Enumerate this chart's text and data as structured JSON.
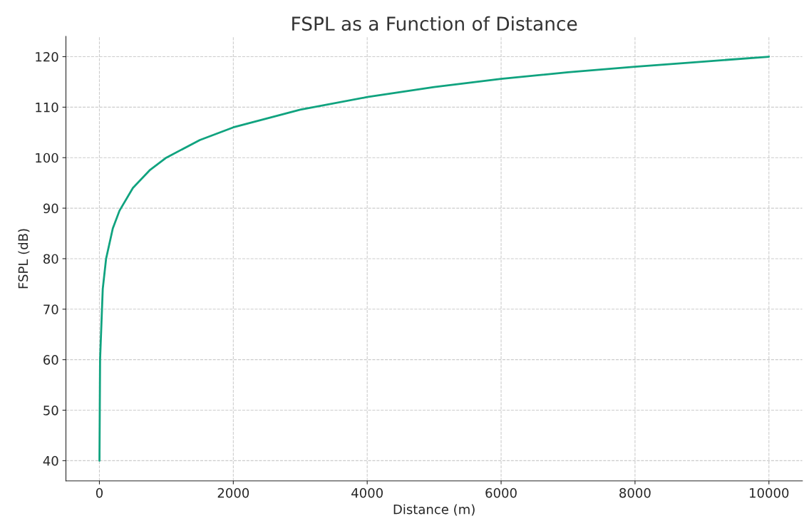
{
  "chart_data": {
    "type": "line",
    "title": "FSPL as a Function of Distance",
    "xlabel": "Distance (m)",
    "ylabel": "FSPL (dB)",
    "x": [
      1,
      10,
      50,
      100,
      200,
      300,
      500,
      750,
      1000,
      1500,
      2000,
      3000,
      4000,
      5000,
      6000,
      7000,
      8000,
      9000,
      10000
    ],
    "series": [
      {
        "color": "#10a37f",
        "values": [
          40,
          60,
          74,
          80,
          86,
          89.5,
          94,
          97.5,
          100,
          103.5,
          106,
          109.5,
          112,
          114,
          115.6,
          116.9,
          118,
          119,
          120
        ]
      }
    ],
    "xlim": [
      -500,
      10500
    ],
    "ylim": [
      36,
      124
    ],
    "xticks": [
      0,
      2000,
      4000,
      6000,
      8000,
      10000
    ],
    "yticks": [
      40,
      50,
      60,
      70,
      80,
      90,
      100,
      110,
      120
    ],
    "grid": true,
    "line_style": "solid",
    "marker": "none"
  }
}
